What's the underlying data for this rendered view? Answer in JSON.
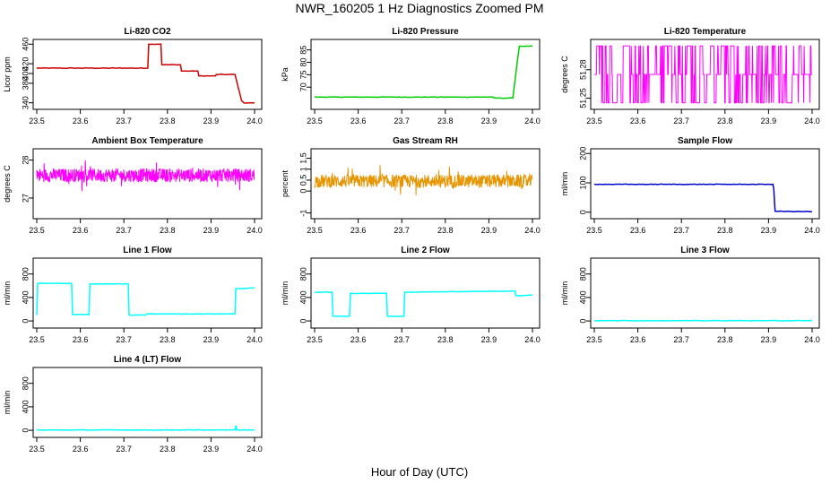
{
  "figure": {
    "title": "NWR_160205  1 Hz Diagnostics Zoomed PM",
    "xlabel": "Hour of Day (UTC)"
  },
  "chart_data": [
    {
      "id": "co2",
      "type": "line",
      "title": "Li-820 CO2",
      "ylabel": "Licor ppm",
      "xlim": [
        23.5,
        24.0
      ],
      "ylim": [
        334,
        466
      ],
      "xticks": [
        "23.5",
        "23.6",
        "23.7",
        "23.8",
        "23.9",
        "24.0"
      ],
      "yticks": [
        340,
        380,
        400,
        420,
        460
      ],
      "color": "#cc0000",
      "x": [
        23.5,
        23.755,
        23.757,
        23.785,
        23.787,
        23.83,
        23.832,
        23.87,
        23.872,
        23.91,
        23.912,
        23.955,
        23.97,
        23.975,
        24.0
      ],
      "y": [
        411,
        411,
        460,
        460,
        418,
        418,
        405,
        405,
        395,
        395,
        398,
        398,
        345,
        340,
        340
      ]
    },
    {
      "id": "pressure",
      "type": "line",
      "title": "Li-820 Pressure",
      "ylabel": "kPa",
      "xlim": [
        23.5,
        24.0
      ],
      "ylim": [
        62.5,
        88.5
      ],
      "xticks": [
        "23.5",
        "23.6",
        "23.7",
        "23.8",
        "23.9",
        "24.0"
      ],
      "yticks": [
        70,
        75,
        80,
        85
      ],
      "color": "#00cc00",
      "x": [
        23.5,
        23.91,
        23.912,
        23.955,
        23.965,
        23.97,
        24.0
      ],
      "y": [
        66,
        66,
        65.6,
        65.6,
        80,
        86.5,
        86.5
      ]
    },
    {
      "id": "temperature",
      "type": "line",
      "title": "Li-820 Temperature",
      "ylabel": "degrees C",
      "xlim": [
        23.5,
        24.0
      ],
      "ylim": [
        51.242,
        51.31
      ],
      "xticks": [
        "23.5",
        "23.6",
        "23.7",
        "23.8",
        "23.9",
        "24.0"
      ],
      "yticks": [
        51.25,
        51.28
      ],
      "color": "#ff00ff",
      "noise": "toggle",
      "levels": [
        51.245,
        51.275,
        51.305
      ],
      "xrange": [
        23.5,
        24.0
      ]
    },
    {
      "id": "ambient",
      "type": "line",
      "title": "Ambient Box Temperature",
      "ylabel": "degrees C",
      "xlim": [
        23.5,
        24.0
      ],
      "ylim": [
        26.55,
        28.25
      ],
      "xticks": [
        "23.5",
        "23.6",
        "23.7",
        "23.8",
        "23.9",
        "24.0"
      ],
      "yticks": [
        27.0,
        28.0
      ],
      "color": "#ff00ff",
      "noise": "band",
      "base": 27.6,
      "amp": 0.18,
      "spike": 0.45,
      "xrange": [
        23.5,
        24.0
      ]
    },
    {
      "id": "rh",
      "type": "line",
      "title": "Gas Stream RH",
      "ylabel": "percent",
      "xlim": [
        23.5,
        24.0
      ],
      "ylim": [
        -1.1,
        1.85
      ],
      "xticks": [
        "23.5",
        "23.6",
        "23.7",
        "23.8",
        "23.9",
        "24.0"
      ],
      "yticks": [
        -1.0,
        0.0,
        0.5,
        1.0,
        1.5
      ],
      "color": "#e69500",
      "noise": "band",
      "base": 0.45,
      "amp": 0.3,
      "spike": 0.8,
      "xrange": [
        23.5,
        24.0
      ]
    },
    {
      "id": "sampleflow",
      "type": "line",
      "title": "Sample Flow",
      "ylabel": "ml/min",
      "xlim": [
        23.5,
        24.0
      ],
      "ylim": [
        -10,
        210
      ],
      "xticks": [
        "23.5",
        "23.6",
        "23.7",
        "23.8",
        "23.9",
        "24.0"
      ],
      "yticks": [
        0,
        100,
        200
      ],
      "color": "#0000cc",
      "x": [
        23.5,
        23.91,
        23.912,
        23.915,
        24.0
      ],
      "y": [
        95,
        95,
        80,
        3,
        2
      ]
    },
    {
      "id": "line1",
      "type": "line",
      "title": "Line 1 Flow",
      "ylabel": "ml/min",
      "xlim": [
        23.5,
        24.0
      ],
      "ylim": [
        -60,
        1040
      ],
      "xticks": [
        "23.5",
        "23.6",
        "23.7",
        "23.8",
        "23.9",
        "24.0"
      ],
      "yticks": [
        0,
        400,
        800
      ],
      "color": "#00ffff",
      "x": [
        23.5,
        23.502,
        23.58,
        23.582,
        23.62,
        23.622,
        23.71,
        23.712,
        23.75,
        23.752,
        23.955,
        23.957,
        24.0
      ],
      "y": [
        100,
        640,
        640,
        110,
        110,
        630,
        630,
        100,
        100,
        120,
        120,
        550,
        560
      ]
    },
    {
      "id": "line2",
      "type": "line",
      "title": "Line 2 Flow",
      "ylabel": "ml/min",
      "xlim": [
        23.5,
        24.0
      ],
      "ylim": [
        -60,
        1040
      ],
      "xticks": [
        "23.5",
        "23.6",
        "23.7",
        "23.8",
        "23.9",
        "24.0"
      ],
      "yticks": [
        0,
        400,
        800
      ],
      "color": "#00ffff",
      "x": [
        23.5,
        23.54,
        23.542,
        23.58,
        23.582,
        23.665,
        23.667,
        23.705,
        23.707,
        23.96,
        23.962,
        24.0
      ],
      "y": [
        490,
        490,
        80,
        80,
        470,
        470,
        80,
        80,
        490,
        510,
        430,
        440
      ]
    },
    {
      "id": "line3",
      "type": "line",
      "title": "Line 3 Flow",
      "ylabel": "ml/min",
      "xlim": [
        23.5,
        24.0
      ],
      "ylim": [
        -60,
        1040
      ],
      "xticks": [
        "23.5",
        "23.6",
        "23.7",
        "23.8",
        "23.9",
        "24.0"
      ],
      "yticks": [
        0,
        400,
        800
      ],
      "color": "#00ffff",
      "x": [
        23.5,
        24.0
      ],
      "y": [
        5,
        5
      ]
    },
    {
      "id": "line4",
      "type": "line",
      "title": "Line 4 (LT) Flow",
      "ylabel": "ml/min",
      "xlim": [
        23.5,
        24.0
      ],
      "ylim": [
        -60,
        1040
      ],
      "xticks": [
        "23.5",
        "23.6",
        "23.7",
        "23.8",
        "23.9",
        "24.0"
      ],
      "yticks": [
        0,
        400,
        800
      ],
      "color": "#00ffff",
      "x": [
        23.5,
        23.955,
        23.957,
        23.959,
        23.961,
        24.0
      ],
      "y": [
        5,
        5,
        80,
        5,
        5,
        5
      ]
    }
  ]
}
